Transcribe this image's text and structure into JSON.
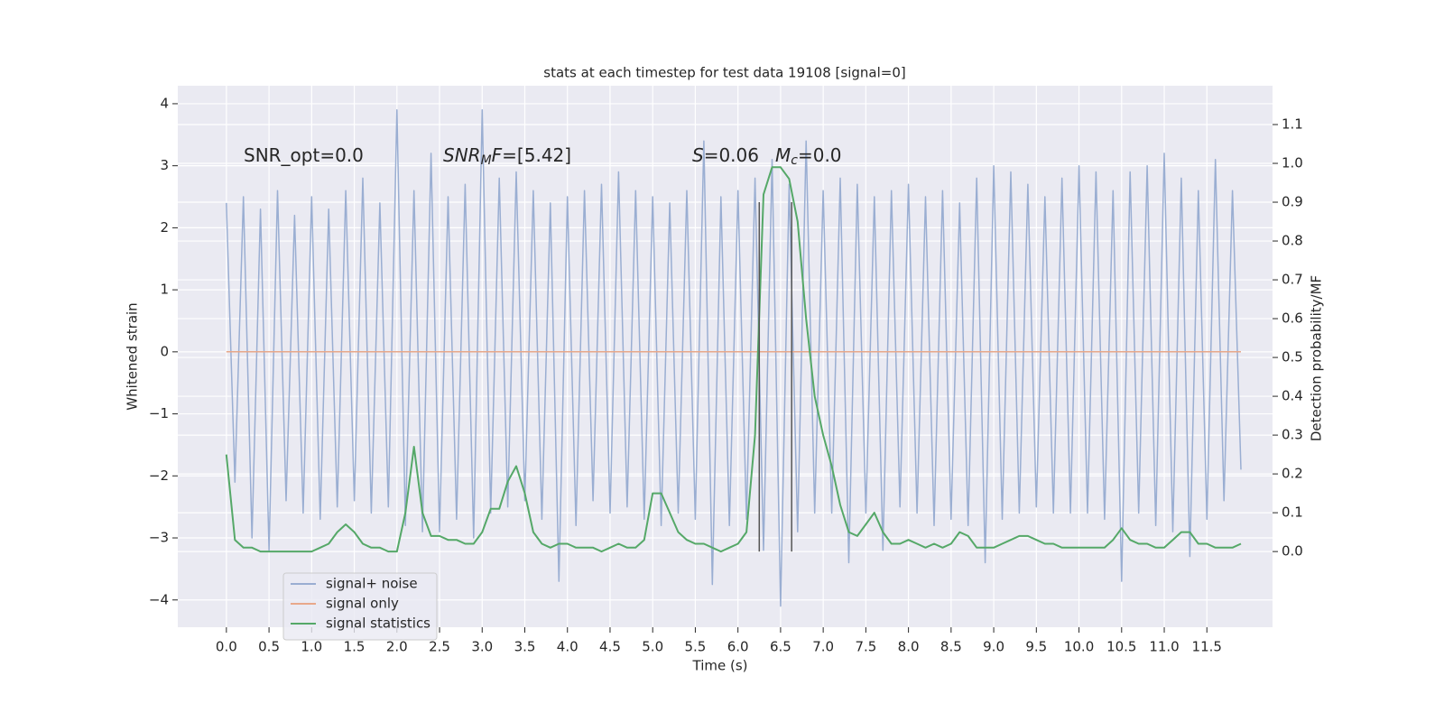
{
  "chart_data": {
    "type": "line",
    "title": "stats at each timestep for test data 19108 [signal=0]",
    "xlabel": "Time (s)",
    "ylabel": "Whitened strain",
    "y2label": "Detection probability/MF",
    "xlim": [
      -0.57,
      12.27
    ],
    "ylim": [
      -4.44,
      4.29
    ],
    "y2lim": [
      -0.195,
      1.2
    ],
    "xticks": [
      {
        "value": 0,
        "label": "0.0"
      },
      0.5,
      {
        "value": 1,
        "label": "1.0"
      },
      1.5,
      {
        "value": 2,
        "label": "2.0"
      },
      2.5,
      {
        "value": 3,
        "label": "3.0"
      },
      3.5,
      {
        "value": 4,
        "label": "4.0"
      },
      4.5,
      {
        "value": 5,
        "label": "5.0"
      },
      5.5,
      {
        "value": 6,
        "label": "6.0"
      },
      6.5,
      {
        "value": 7,
        "label": "7.0"
      },
      7.5,
      {
        "value": 8,
        "label": "8.0"
      },
      8.5,
      {
        "value": 9,
        "label": "9.0"
      },
      9.5,
      {
        "value": 10,
        "label": "10.0"
      },
      10.5,
      {
        "value": 11,
        "label": "11.0"
      },
      11.5
    ],
    "yticks": [
      {
        "value": -4,
        "label": "−4"
      },
      {
        "value": -3,
        "label": "−3"
      },
      {
        "value": -2,
        "label": "−2"
      },
      {
        "value": -1,
        "label": "−1"
      },
      0,
      1,
      2,
      3,
      4
    ],
    "y2ticks": [
      {
        "value": 0,
        "label": "0.0"
      },
      0.1,
      0.2,
      0.3,
      0.4,
      0.5,
      0.6,
      0.7,
      0.8,
      0.9,
      {
        "value": 1,
        "label": "1.0"
      },
      1.1
    ],
    "grid": true,
    "legend": "lower left",
    "x": [
      0.0,
      0.1,
      0.2,
      0.3,
      0.4,
      0.5,
      0.6,
      0.7,
      0.8,
      0.9,
      1.0,
      1.1,
      1.2,
      1.3,
      1.4,
      1.5,
      1.6,
      1.7,
      1.8,
      1.9,
      2.0,
      2.1,
      2.2,
      2.3,
      2.4,
      2.5,
      2.6,
      2.7,
      2.8,
      2.9,
      3.0,
      3.1,
      3.2,
      3.3,
      3.4,
      3.5,
      3.6,
      3.7,
      3.8,
      3.9,
      4.0,
      4.1,
      4.2,
      4.3,
      4.4,
      4.5,
      4.6,
      4.7,
      4.8,
      4.9,
      5.0,
      5.1,
      5.2,
      5.3,
      5.4,
      5.5,
      5.6,
      5.7,
      5.8,
      5.9,
      6.0,
      6.1,
      6.2,
      6.3,
      6.4,
      6.5,
      6.6,
      6.7,
      6.8,
      6.9,
      7.0,
      7.1,
      7.2,
      7.3,
      7.4,
      7.5,
      7.6,
      7.7,
      7.8,
      7.9,
      8.0,
      8.1,
      8.2,
      8.3,
      8.4,
      8.5,
      8.6,
      8.7,
      8.8,
      8.9,
      9.0,
      9.1,
      9.2,
      9.3,
      9.4,
      9.5,
      9.6,
      9.7,
      9.8,
      9.9,
      10.0,
      10.1,
      10.2,
      10.3,
      10.4,
      10.5,
      10.6,
      10.7,
      10.8,
      10.9,
      11.0,
      11.1,
      11.2,
      11.3,
      11.4,
      11.5,
      11.6,
      11.7,
      11.8,
      11.9
    ],
    "series": [
      {
        "name": "signal+ noise",
        "color": "#9aaed2",
        "values": [
          2.4,
          -2.1,
          2.5,
          -3.0,
          2.3,
          -3.2,
          2.6,
          -2.4,
          2.2,
          -2.6,
          2.5,
          -2.7,
          2.3,
          -2.5,
          2.6,
          -2.4,
          2.8,
          -2.6,
          2.4,
          -2.5,
          3.9,
          -2.8,
          2.6,
          -2.9,
          3.2,
          -2.9,
          2.5,
          -2.7,
          2.7,
          -3.0,
          3.9,
          -2.6,
          2.8,
          -2.5,
          2.9,
          -2.4,
          2.6,
          -2.7,
          2.4,
          -3.7,
          2.5,
          -2.8,
          2.6,
          -2.4,
          2.7,
          -2.6,
          2.9,
          -2.5,
          2.6,
          -2.7,
          2.5,
          -2.8,
          2.4,
          -2.6,
          2.6,
          -2.7,
          3.4,
          -3.75,
          2.5,
          -2.8,
          2.6,
          -2.7,
          2.8,
          -3.2,
          3.1,
          -4.1,
          2.7,
          -2.9,
          3.4,
          -2.6,
          2.6,
          -2.6,
          2.8,
          -3.4,
          2.7,
          -2.6,
          2.5,
          -3.2,
          2.6,
          -2.5,
          2.7,
          -2.6,
          2.5,
          -2.8,
          2.6,
          -2.7,
          2.4,
          -2.8,
          2.8,
          -3.4,
          3.0,
          -2.7,
          2.9,
          -2.6,
          2.7,
          -2.5,
          2.5,
          -2.6,
          2.8,
          -2.6,
          3.0,
          -2.6,
          2.9,
          -2.7,
          2.6,
          -3.7,
          2.9,
          -2.6,
          3.0,
          -2.8,
          3.2,
          -2.9,
          2.8,
          -3.3,
          2.6,
          -2.7,
          3.1,
          -2.4,
          2.6,
          -1.9
        ]
      },
      {
        "name": "signal only",
        "color": "#e8a88a",
        "x": [
          0.0,
          11.9
        ],
        "values": [
          0,
          0
        ]
      },
      {
        "name": "signal statistics",
        "color": "#55a868",
        "axis": "y2",
        "values": [
          0.25,
          0.03,
          0.01,
          0.01,
          0.0,
          0.0,
          0.0,
          0.0,
          0.0,
          0.0,
          0.0,
          0.01,
          0.02,
          0.05,
          0.07,
          0.05,
          0.02,
          0.01,
          0.01,
          0.0,
          0.0,
          0.1,
          0.27,
          0.1,
          0.04,
          0.04,
          0.03,
          0.03,
          0.02,
          0.02,
          0.05,
          0.11,
          0.11,
          0.18,
          0.22,
          0.15,
          0.05,
          0.02,
          0.01,
          0.02,
          0.02,
          0.01,
          0.01,
          0.01,
          0.0,
          0.01,
          0.02,
          0.01,
          0.01,
          0.03,
          0.15,
          0.15,
          0.1,
          0.05,
          0.03,
          0.02,
          0.02,
          0.01,
          0.0,
          0.01,
          0.02,
          0.05,
          0.3,
          0.92,
          0.99,
          0.99,
          0.96,
          0.85,
          0.6,
          0.4,
          0.3,
          0.22,
          0.12,
          0.05,
          0.04,
          0.07,
          0.1,
          0.05,
          0.02,
          0.02,
          0.03,
          0.02,
          0.01,
          0.02,
          0.01,
          0.02,
          0.05,
          0.04,
          0.01,
          0.01,
          0.01,
          0.02,
          0.03,
          0.04,
          0.04,
          0.03,
          0.02,
          0.02,
          0.01,
          0.01,
          0.01,
          0.01,
          0.01,
          0.01,
          0.03,
          0.06,
          0.03,
          0.02,
          0.02,
          0.01,
          0.01,
          0.03,
          0.05,
          0.05,
          0.02,
          0.02,
          0.01,
          0.01,
          0.01,
          0.02
        ]
      }
    ],
    "vlines": [
      6.25,
      6.63
    ],
    "vline_range": [
      0,
      0.9
    ],
    "vline_color": "#555555",
    "annotations": [
      [
        {
          "text": "SNR_opt=0.0",
          "style": "normal"
        }
      ],
      [
        {
          "text": "SNR",
          "style": "italic"
        },
        {
          "text": "M",
          "style": "sub"
        },
        {
          "text": "F",
          "style": "italic"
        },
        {
          "text": "=[5.42]",
          "style": "normal"
        }
      ],
      [
        {
          "text": "S",
          "style": "italic"
        },
        {
          "text": "=0.06",
          "style": "normal"
        }
      ],
      [
        {
          "text": "M",
          "style": "italic"
        },
        {
          "text": "c",
          "style": "sub"
        },
        {
          "text": "=0.0",
          "style": "normal"
        }
      ]
    ]
  }
}
